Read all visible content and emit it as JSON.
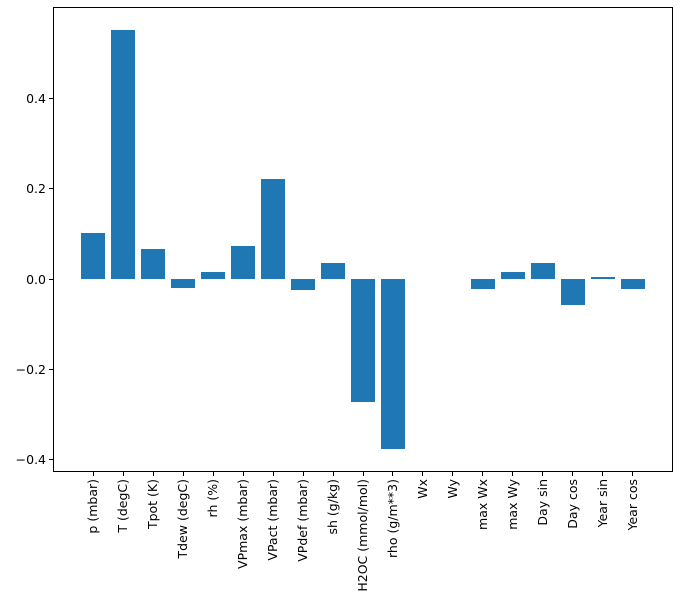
{
  "chart_data": {
    "type": "bar",
    "title": "",
    "xlabel": "",
    "ylabel": "",
    "categories": [
      "p (mbar)",
      "T (degC)",
      "Tpot (K)",
      "Tdew (degC)",
      "rh (%)",
      "VPmax (mbar)",
      "VPact (mbar)",
      "VPdef (mbar)",
      "sh (g/kg)",
      "H2OC (mmol/mol)",
      "rho (g/m**3)",
      "Wx",
      "Wy",
      "max Wx",
      "max Wy",
      "Day sin",
      "Day cos",
      "Year sin",
      "Year cos"
    ],
    "values": [
      0.103,
      0.551,
      0.068,
      -0.019,
      0.015,
      0.073,
      0.223,
      -0.024,
      0.037,
      -0.273,
      -0.377,
      0.0,
      0.0,
      -0.021,
      0.017,
      0.037,
      -0.058,
      0.005,
      -0.022
    ],
    "ylim": [
      -0.427,
      0.603
    ],
    "yticks": [
      -0.4,
      -0.2,
      0.0,
      0.2,
      0.4
    ],
    "ytick_labels": [
      "−0.4",
      "−0.2",
      "0.0",
      "0.2",
      "0.4"
    ],
    "grid": false,
    "legend_position": "none",
    "bar_color": "#1f77b4",
    "background_color": "#ffffff",
    "spine_color": "#000000"
  }
}
